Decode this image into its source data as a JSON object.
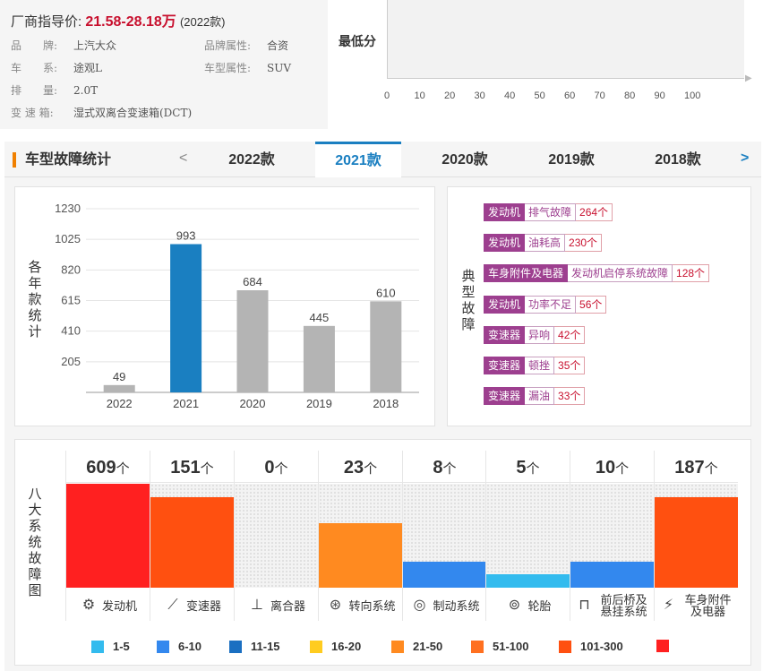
{
  "header": {
    "price_label": "厂商指导价:",
    "price_value": "21.58-28.18万",
    "price_year": "(2022款)",
    "specs": [
      {
        "label": "品　　牌:",
        "value": "上汽大众"
      },
      {
        "label": "品牌属性:",
        "value": "合资"
      },
      {
        "label": "车　　系:",
        "value": "途观L"
      },
      {
        "label": "车型属性:",
        "value": "SUV"
      },
      {
        "label": "排　　量:",
        "value": "2.0T"
      },
      {
        "label": "变 速 箱:",
        "value": "湿式双离合变速箱(DCT)"
      }
    ]
  },
  "score": {
    "label": "最低分",
    "value": "0",
    "ticks": [
      "0",
      "10",
      "20",
      "30",
      "40",
      "50",
      "60",
      "70",
      "80",
      "90",
      "100"
    ]
  },
  "tabs": {
    "title": "车型故障统计",
    "prev": "<",
    "next": ">",
    "items": [
      "2022款",
      "2021款",
      "2020款",
      "2019款",
      "2018款"
    ],
    "active": "2021款"
  },
  "year_chart_label": [
    "各",
    "年",
    "款",
    "统",
    "计"
  ],
  "chart_data": {
    "type": "bar",
    "categories": [
      "2022",
      "2021",
      "2020",
      "2019",
      "2018"
    ],
    "values": [
      49,
      993,
      684,
      445,
      610
    ],
    "highlight": "2021",
    "yticks": [
      205,
      410,
      615,
      820,
      1025,
      1230
    ],
    "ylim": [
      0,
      1230
    ],
    "colors": {
      "normal": "#b4b4b4",
      "highlight": "#1a7fc1"
    }
  },
  "typical_label": [
    "典",
    "型",
    "故",
    "障"
  ],
  "typical_faults": [
    {
      "category": "发动机",
      "desc": "排气故障",
      "count": "264个"
    },
    {
      "category": "发动机",
      "desc": "油耗高",
      "count": "230个"
    },
    {
      "category": "车身附件及电器",
      "desc": "发动机启停系统故障",
      "count": "128个"
    },
    {
      "category": "发动机",
      "desc": "功率不足",
      "count": "56个"
    },
    {
      "category": "变速器",
      "desc": "异响",
      "count": "42个"
    },
    {
      "category": "变速器",
      "desc": "顿挫",
      "count": "35个"
    },
    {
      "category": "变速器",
      "desc": "漏油",
      "count": "33个"
    }
  ],
  "systems_label": [
    "八",
    "大",
    "系",
    "统",
    "故",
    "障",
    "图"
  ],
  "systems": [
    {
      "count": "609",
      "unit": "个",
      "name": "发动机",
      "icon": "engine-icon",
      "glyph": "⚙",
      "level": 1.0,
      "color": "#ff2020"
    },
    {
      "count": "151",
      "unit": "个",
      "name": "变速器",
      "icon": "gearshift-icon",
      "glyph": "⟋",
      "level": 0.87,
      "color": "#ff5010"
    },
    {
      "count": "0",
      "unit": "个",
      "name": "离合器",
      "icon": "clutch-icon",
      "glyph": "⊥",
      "level": 0,
      "color": "#ff8020"
    },
    {
      "count": "23",
      "unit": "个",
      "name": "转向系统",
      "icon": "steering-wheel-icon",
      "glyph": "⊛",
      "level": 0.62,
      "color": "#ff8a20"
    },
    {
      "count": "8",
      "unit": "个",
      "name": "制动系统",
      "icon": "brake-disc-icon",
      "glyph": "◎",
      "level": 0.25,
      "color": "#3388ee"
    },
    {
      "count": "5",
      "unit": "个",
      "name": "轮胎",
      "icon": "tire-icon",
      "glyph": "⊚",
      "level": 0.13,
      "color": "#33bbee"
    },
    {
      "count": "10",
      "unit": "个",
      "name": "前后桥及悬挂系统",
      "icon": "suspension-icon",
      "glyph": "⊓",
      "level": 0.25,
      "color": "#3388ee"
    },
    {
      "count": "187",
      "unit": "个",
      "name": "车身附件及电器",
      "icon": "battery-icon",
      "glyph": "⚡",
      "level": 0.87,
      "color": "#ff5010"
    }
  ],
  "legend": [
    {
      "label": "1-5",
      "color": "#33bbee"
    },
    {
      "label": "6-10",
      "color": "#3388ee"
    },
    {
      "label": "11-15",
      "color": "#1a6fc1"
    },
    {
      "label": "16-20",
      "color": "#ffcc20"
    },
    {
      "label": "21-50",
      "color": "#ff8a20"
    },
    {
      "label": "51-100",
      "color": "#ff7020"
    },
    {
      "label": "101-300",
      "color": "#ff5010"
    },
    {
      "label": "",
      "color": "#ff2020"
    }
  ]
}
